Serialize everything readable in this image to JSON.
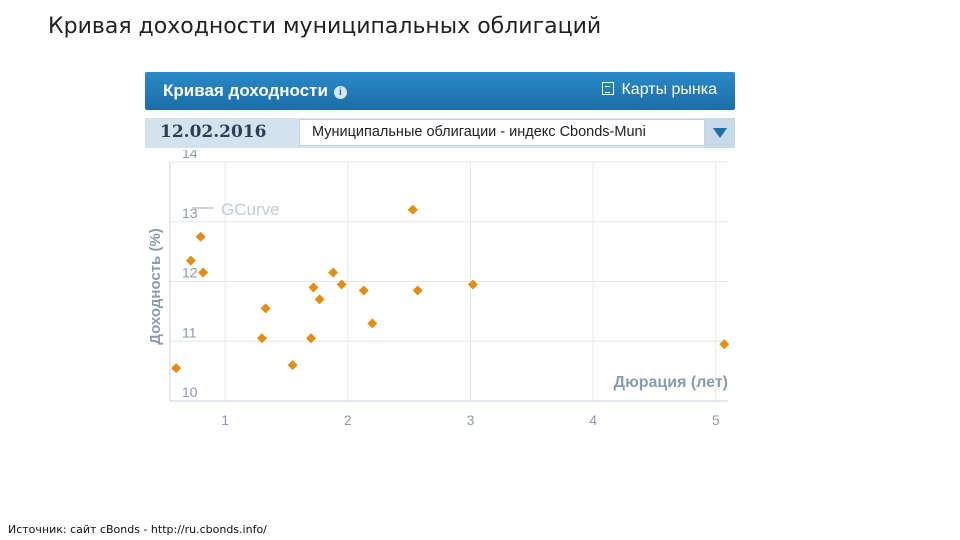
{
  "slide": {
    "title": "Кривая доходности муниципальных облигаций",
    "source": "Источник: сайт cBonds - http://ru.cbonds.info/"
  },
  "widget": {
    "header_title": "Кривая доходности",
    "info_icon": "info-icon",
    "market_maps_label": "Карты рынка",
    "market_maps_icon": "map-icon",
    "date": "12.02.2016",
    "selected_index": "Муниципальные облигации - индекс Cbonds-Muni",
    "header_color": "#1c6ea8",
    "point_color": "#e38d12"
  },
  "chart_data": {
    "type": "scatter",
    "xlabel": "Дюрация (лет)",
    "ylabel": "Доходность (%)",
    "legend": "GCurve",
    "legend_placement": "top-left",
    "xlim": [
      0.55,
      5.1
    ],
    "ylim": [
      10,
      14
    ],
    "x_ticks": [
      1,
      2,
      3,
      4,
      5
    ],
    "y_ticks": [
      10,
      11,
      12,
      13,
      14
    ],
    "grid": true,
    "points": [
      {
        "x": 0.6,
        "y": 10.55
      },
      {
        "x": 0.72,
        "y": 12.35
      },
      {
        "x": 0.8,
        "y": 12.75
      },
      {
        "x": 0.82,
        "y": 12.15
      },
      {
        "x": 1.3,
        "y": 11.05
      },
      {
        "x": 1.33,
        "y": 11.55
      },
      {
        "x": 1.55,
        "y": 10.6
      },
      {
        "x": 1.7,
        "y": 11.05
      },
      {
        "x": 1.72,
        "y": 11.9
      },
      {
        "x": 1.77,
        "y": 11.7
      },
      {
        "x": 1.88,
        "y": 12.15
      },
      {
        "x": 1.95,
        "y": 11.95
      },
      {
        "x": 2.13,
        "y": 11.85
      },
      {
        "x": 2.2,
        "y": 11.3
      },
      {
        "x": 2.53,
        "y": 13.2
      },
      {
        "x": 2.57,
        "y": 11.85
      },
      {
        "x": 3.02,
        "y": 11.95
      },
      {
        "x": 5.07,
        "y": 10.95
      }
    ]
  }
}
